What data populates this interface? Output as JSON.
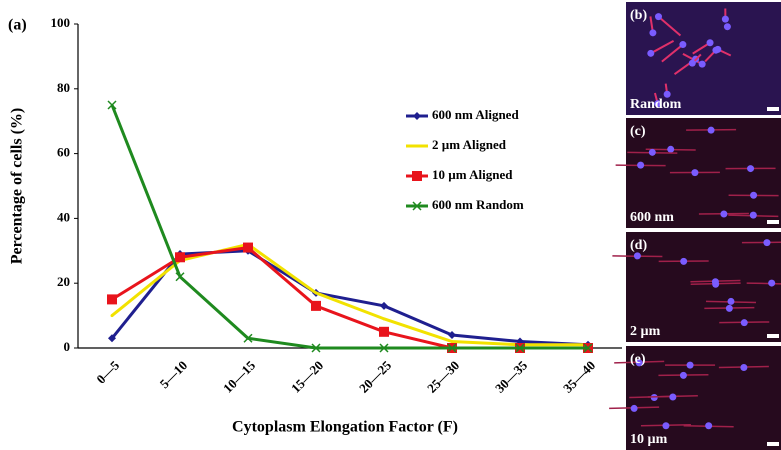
{
  "chart_data": {
    "type": "line",
    "panel_label": "(a)",
    "x_label": "Cytoplasm Elongation Factor (F)",
    "y_label": "Percentage of cells (%)",
    "categories": [
      "0—5",
      "5—10",
      "10—15",
      "15—20",
      "20—25",
      "25—30",
      "30—35",
      "35—40"
    ],
    "series": [
      {
        "name": "600 nm Aligned",
        "color": "#1f1f8f",
        "marker": "diamond",
        "values": [
          3,
          29,
          30,
          17,
          13,
          4,
          2,
          1
        ]
      },
      {
        "name": "2 µm Aligned",
        "color": "#f2e200",
        "marker": "none",
        "values": [
          10,
          27,
          32,
          17,
          9,
          2,
          1,
          1
        ]
      },
      {
        "name": "10 µm Aligned",
        "color": "#e8141c",
        "marker": "square",
        "values": [
          15,
          28,
          31,
          13,
          5,
          0,
          0,
          0
        ]
      },
      {
        "name": "600 nm Random",
        "color": "#1f8a1f",
        "marker": "x",
        "values": [
          75,
          22,
          3,
          0,
          0,
          0,
          0,
          0
        ]
      }
    ],
    "ylim": [
      0,
      100
    ],
    "yticks": [
      0,
      20,
      40,
      60,
      80,
      100
    ]
  },
  "panels": [
    {
      "label": "(b)",
      "caption": "Random"
    },
    {
      "label": "(c)",
      "caption": "600 nm"
    },
    {
      "label": "(d)",
      "caption": "2 µm"
    },
    {
      "label": "(e)",
      "caption": "10 µm"
    }
  ]
}
